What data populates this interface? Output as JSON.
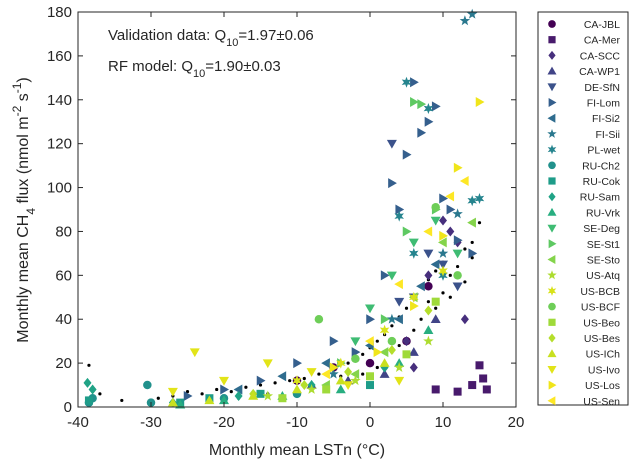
{
  "chart_data": {
    "type": "scatter",
    "xlabel": "Monthly mean LSTn (°C)",
    "ylabel": {
      "parts": [
        {
          "text": "Monthly mean CH",
          "shift": "none"
        },
        {
          "text": "4",
          "shift": "sub"
        },
        {
          "text": " flux (nmol m",
          "shift": "none"
        },
        {
          "text": "-2",
          "shift": "super"
        },
        {
          "text": " s",
          "shift": "none"
        },
        {
          "text": "-1",
          "shift": "super"
        },
        {
          "text": ")",
          "shift": "none"
        }
      ]
    },
    "xlim": [
      -40,
      20
    ],
    "ylim": [
      0,
      180
    ],
    "xticks": [
      -40,
      -30,
      -20,
      -10,
      0,
      10,
      20
    ],
    "yticks": [
      0,
      20,
      40,
      60,
      80,
      100,
      120,
      140,
      160,
      180
    ],
    "annotations": [
      {
        "parts": [
          {
            "text": "Validation data: Q",
            "shift": "none"
          },
          {
            "text": "10",
            "shift": "sub"
          },
          {
            "text": "=1.97±0.06",
            "shift": "none"
          }
        ]
      },
      {
        "parts": [
          {
            "text": "RF model: Q",
            "shift": "none"
          },
          {
            "text": "10",
            "shift": "sub"
          },
          {
            "text": "=1.90±0.03",
            "shift": "none"
          }
        ]
      }
    ],
    "legend_position": "outside right",
    "series": [
      {
        "name": "CA-JBL",
        "marker": "circle",
        "color": "#440154",
        "points": [
          [
            -10,
            12
          ],
          [
            -5,
            18
          ],
          [
            0,
            20
          ],
          [
            5,
            30
          ],
          [
            8,
            55
          ]
        ]
      },
      {
        "name": "CA-Mer",
        "marker": "square",
        "color": "#481a6c",
        "points": [
          [
            12,
            7
          ],
          [
            14,
            10
          ],
          [
            15,
            19
          ],
          [
            15.5,
            13
          ],
          [
            9,
            8
          ],
          [
            16,
            8
          ]
        ]
      },
      {
        "name": "CA-SCC",
        "marker": "diamond",
        "color": "#472f7d",
        "points": [
          [
            10,
            85
          ],
          [
            11,
            80
          ],
          [
            12,
            75
          ],
          [
            8,
            60
          ],
          [
            5,
            30
          ],
          [
            6,
            18
          ],
          [
            13,
            40
          ]
        ]
      },
      {
        "name": "CA-WP1",
        "marker": "triangle-up",
        "color": "#414487",
        "points": [
          [
            -8,
            10
          ],
          [
            -3,
            12
          ],
          [
            2,
            15
          ],
          [
            6,
            25
          ],
          [
            9,
            40
          ]
        ]
      },
      {
        "name": "DE-SfN",
        "marker": "triangle-down",
        "color": "#3b528b",
        "points": [
          [
            4,
            48
          ],
          [
            6,
            50
          ],
          [
            8,
            70
          ],
          [
            10,
            65
          ],
          [
            12,
            55
          ],
          [
            3,
            120
          ]
        ]
      },
      {
        "name": "FI-Lom",
        "marker": "triangle-right",
        "color": "#355f8d",
        "points": [
          [
            -25,
            5
          ],
          [
            -20,
            8
          ],
          [
            -15,
            12
          ],
          [
            -10,
            20
          ],
          [
            -5,
            30
          ],
          [
            0,
            40
          ],
          [
            3,
            102
          ],
          [
            5,
            115
          ],
          [
            6,
            148
          ],
          [
            8,
            130
          ],
          [
            7,
            125
          ],
          [
            9,
            137
          ],
          [
            10,
            95
          ],
          [
            11,
            90
          ],
          [
            12,
            76
          ],
          [
            14,
            70
          ],
          [
            4,
            90
          ],
          [
            -2,
            25
          ],
          [
            2,
            60
          ]
        ]
      },
      {
        "name": "FI-Si2",
        "marker": "triangle-left",
        "color": "#2f6c8e",
        "points": [
          [
            -18,
            8
          ],
          [
            -12,
            14
          ],
          [
            -6,
            20
          ],
          [
            0,
            28
          ],
          [
            4,
            40
          ],
          [
            7,
            55
          ],
          [
            9,
            65
          ]
        ]
      },
      {
        "name": "FI-Sii",
        "marker": "star",
        "color": "#2a788e",
        "points": [
          [
            13,
            176
          ],
          [
            14,
            179
          ],
          [
            12,
            88
          ],
          [
            10,
            70
          ],
          [
            3,
            40
          ],
          [
            -5,
            15
          ]
        ]
      },
      {
        "name": "PL-wet",
        "marker": "star6",
        "color": "#25848e",
        "points": [
          [
            5,
            148
          ],
          [
            8,
            136
          ],
          [
            4,
            87
          ],
          [
            6,
            70
          ],
          [
            10,
            60
          ],
          [
            15,
            95
          ],
          [
            14,
            94
          ]
        ]
      },
      {
        "name": "RU-Ch2",
        "marker": "circle",
        "color": "#21918c",
        "points": [
          [
            -38.5,
            2
          ],
          [
            -38,
            4
          ],
          [
            -30.5,
            10
          ],
          [
            -30,
            2
          ],
          [
            -20,
            4
          ],
          [
            -10,
            6
          ]
        ]
      },
      {
        "name": "RU-Cok",
        "marker": "square",
        "color": "#1e9c89",
        "points": [
          [
            -38.5,
            3
          ],
          [
            -26,
            2
          ],
          [
            -22,
            4
          ],
          [
            -15,
            6
          ],
          [
            0,
            10
          ]
        ]
      },
      {
        "name": "RU-Sam",
        "marker": "diamond",
        "color": "#20a386",
        "points": [
          [
            -38.7,
            11
          ],
          [
            -38,
            8
          ],
          [
            -27,
            2
          ],
          [
            -18,
            5
          ],
          [
            -8,
            10
          ],
          [
            2,
            18
          ]
        ]
      },
      {
        "name": "RU-Vrk",
        "marker": "triangle-up",
        "color": "#28ae80",
        "points": [
          [
            -26,
            1
          ],
          [
            -20,
            3
          ],
          [
            -12,
            5
          ],
          [
            -4,
            8
          ],
          [
            4,
            20
          ],
          [
            8,
            35
          ]
        ]
      },
      {
        "name": "SE-Deg",
        "marker": "triangle-down",
        "color": "#3fbc73",
        "points": [
          [
            -2,
            30
          ],
          [
            0,
            45
          ],
          [
            3,
            60
          ],
          [
            6,
            75
          ],
          [
            9,
            85
          ],
          [
            12,
            70
          ]
        ]
      },
      {
        "name": "SE-St1",
        "marker": "triangle-right",
        "color": "#5ec962",
        "points": [
          [
            6,
            139
          ],
          [
            7,
            138
          ],
          [
            9,
            90
          ],
          [
            5,
            80
          ],
          [
            2,
            40
          ],
          [
            -4,
            20
          ]
        ]
      },
      {
        "name": "SE-Sto",
        "marker": "triangle-left",
        "color": "#84d44b",
        "points": [
          [
            -6,
            10
          ],
          [
            -2,
            15
          ],
          [
            2,
            25
          ],
          [
            6,
            50
          ],
          [
            10,
            75
          ],
          [
            14,
            84
          ]
        ]
      },
      {
        "name": "US-Atq",
        "marker": "star",
        "color": "#addc30",
        "points": [
          [
            -14,
            5
          ],
          [
            -8,
            8
          ],
          [
            -2,
            12
          ],
          [
            4,
            18
          ],
          [
            8,
            30
          ]
        ]
      },
      {
        "name": "US-BCB",
        "marker": "star6",
        "color": "#d8e219",
        "points": [
          [
            -10,
            12
          ],
          [
            -4,
            20
          ],
          [
            2,
            35
          ],
          [
            6,
            50
          ],
          [
            10,
            62
          ]
        ]
      },
      {
        "name": "US-BCF",
        "marker": "circle",
        "color": "#6ece58",
        "points": [
          [
            -7,
            40
          ],
          [
            -2,
            22
          ],
          [
            3,
            30
          ],
          [
            9,
            91
          ],
          [
            12,
            60
          ]
        ]
      },
      {
        "name": "US-Beo",
        "marker": "square",
        "color": "#9fda3a",
        "points": [
          [
            -12,
            4
          ],
          [
            -6,
            8
          ],
          [
            0,
            14
          ],
          [
            5,
            24
          ],
          [
            9,
            48
          ]
        ]
      },
      {
        "name": "US-Bes",
        "marker": "diamond",
        "color": "#b5de2b",
        "points": [
          [
            -16,
            6
          ],
          [
            -9,
            10
          ],
          [
            -3,
            16
          ],
          [
            3,
            26
          ],
          [
            8,
            44
          ]
        ]
      },
      {
        "name": "US-ICh",
        "marker": "triangle-up",
        "color": "#c8e020",
        "points": [
          [
            -27,
            2
          ],
          [
            -22,
            3
          ],
          [
            -16,
            5
          ],
          [
            -10,
            8
          ],
          [
            -4,
            12
          ],
          [
            2,
            20
          ]
        ]
      },
      {
        "name": "US-Ivo",
        "marker": "triangle-down",
        "color": "#e2e418",
        "points": [
          [
            -24,
            25
          ],
          [
            -27,
            7
          ],
          [
            -20,
            12
          ],
          [
            -14,
            20
          ],
          [
            -8,
            16
          ],
          [
            -3,
            10
          ],
          [
            4,
            12
          ]
        ]
      },
      {
        "name": "US-Los",
        "marker": "triangle-right",
        "color": "#f0e51a",
        "points": [
          [
            15,
            139
          ],
          [
            12,
            109
          ],
          [
            10,
            78
          ],
          [
            6,
            46
          ],
          [
            1,
            25
          ],
          [
            -5,
            18
          ]
        ]
      },
      {
        "name": "US-Sen",
        "marker": "triangle-left",
        "color": "#fde725",
        "points": [
          [
            13,
            103
          ],
          [
            11,
            96
          ],
          [
            8,
            80
          ],
          [
            4,
            56
          ],
          [
            0,
            30
          ],
          [
            -6,
            15
          ]
        ]
      }
    ],
    "rf_model": {
      "name": "RF model",
      "marker": "dot",
      "color": "#000000",
      "points": [
        [
          -38.5,
          19
        ],
        [
          -37,
          6
        ],
        [
          -34,
          3
        ],
        [
          -29,
          4
        ],
        [
          -27,
          5
        ],
        [
          -25,
          7
        ],
        [
          -23,
          6
        ],
        [
          -21,
          8
        ],
        [
          -19,
          7
        ],
        [
          -17,
          9
        ],
        [
          -15,
          10
        ],
        [
          -13,
          11
        ],
        [
          -11,
          12
        ],
        [
          -9,
          13
        ],
        [
          -7,
          15
        ],
        [
          -5,
          17
        ],
        [
          -4,
          14
        ],
        [
          -3,
          20
        ],
        [
          -2,
          22
        ],
        [
          -1,
          24
        ],
        [
          0,
          27
        ],
        [
          1,
          30
        ],
        [
          2,
          33
        ],
        [
          3,
          37
        ],
        [
          4,
          41
        ],
        [
          5,
          45
        ],
        [
          6,
          50
        ],
        [
          7,
          55
        ],
        [
          8,
          58
        ],
        [
          9,
          62
        ],
        [
          10,
          66
        ],
        [
          11,
          60
        ],
        [
          12,
          64
        ],
        [
          13,
          57
        ],
        [
          14,
          68
        ],
        [
          15,
          84
        ],
        [
          5,
          30
        ],
        [
          7,
          40
        ],
        [
          9,
          45
        ],
        [
          11,
          50
        ],
        [
          13,
          72
        ],
        [
          3,
          25
        ],
        [
          1,
          18
        ],
        [
          -1,
          15
        ],
        [
          -6,
          9
        ],
        [
          -10,
          8
        ],
        [
          -14,
          6
        ],
        [
          -18,
          4
        ],
        [
          -22,
          3
        ],
        [
          6,
          35
        ],
        [
          8,
          48
        ],
        [
          10,
          52
        ],
        [
          12,
          70
        ],
        [
          14,
          75
        ],
        [
          4,
          28
        ]
      ]
    }
  }
}
